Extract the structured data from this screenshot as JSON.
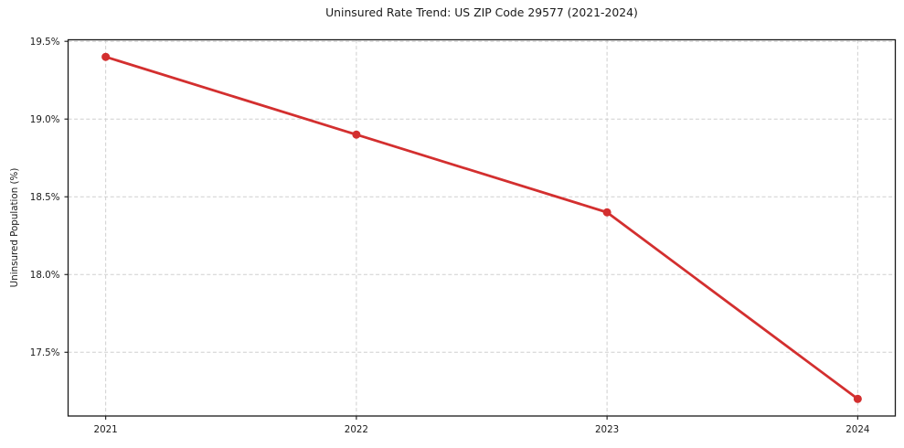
{
  "page": {
    "background": "#ffffff"
  },
  "chart_data": {
    "type": "line",
    "title": "Uninsured Rate Trend: US ZIP Code 29577 (2021-2024)",
    "xlabel": "",
    "ylabel": "Uninsured Population (%)",
    "x": [
      2021,
      2022,
      2023,
      2024
    ],
    "values": [
      19.4,
      18.9,
      18.4,
      17.2
    ],
    "xtick_labels": [
      "2021",
      "2022",
      "2023",
      "2024"
    ],
    "ytick_values": [
      17.5,
      18.0,
      18.5,
      19.0,
      19.5
    ],
    "ytick_labels": [
      "17.5%",
      "18.0%",
      "18.5%",
      "19.0%",
      "19.5%"
    ],
    "xlim": [
      2020.85,
      2024.15
    ],
    "ylim": [
      17.09,
      19.51
    ],
    "grid": true,
    "grid_style": "dashed",
    "legend_position": "none",
    "marker": "circle",
    "colors": {
      "line": "#d32f2f",
      "marker": "#d32f2f",
      "grid": "#cfcfcf",
      "spine": "#1a1a1a",
      "tick": "#1a1a1a",
      "text": "#1a1a1a",
      "background": "#ffffff"
    }
  }
}
